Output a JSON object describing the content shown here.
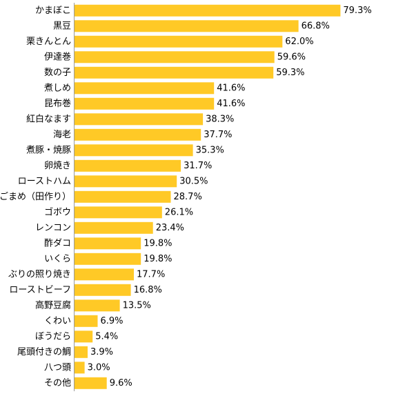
{
  "chart_data": {
    "type": "bar",
    "orientation": "horizontal",
    "title": "",
    "xlabel": "",
    "ylabel": "",
    "unit": "%",
    "xlim": [
      0,
      100
    ],
    "grid": false,
    "legend": "none",
    "bar_color": "#FFC926",
    "categories": [
      "かまぼこ",
      "黒豆",
      "栗きんとん",
      "伊達巻",
      "数の子",
      "煮しめ",
      "昆布巻",
      "紅白なます",
      "海老",
      "煮豚・焼豚",
      "卵焼き",
      "ローストハム",
      "ごまめ（田作り）",
      "ゴボウ",
      "レンコン",
      "酢ダコ",
      "いくら",
      "ぶりの照り焼き",
      "ローストビーフ",
      "高野豆腐",
      "くわい",
      "ぼうだら",
      "尾頭付きの鯛",
      "八つ頭",
      "その他"
    ],
    "values": [
      79.3,
      66.8,
      62.0,
      59.6,
      59.3,
      41.6,
      41.6,
      38.3,
      37.7,
      35.3,
      31.7,
      30.5,
      28.7,
      26.1,
      23.4,
      19.8,
      19.8,
      17.7,
      16.8,
      13.5,
      6.9,
      5.4,
      3.9,
      3.0,
      9.6
    ],
    "value_labels": [
      "79.3%",
      "66.8%",
      "62.0%",
      "59.6%",
      "59.3%",
      "41.6%",
      "41.6%",
      "38.3%",
      "37.7%",
      "35.3%",
      "31.7%",
      "30.5%",
      "28.7%",
      "26.1%",
      "23.4%",
      "19.8%",
      "19.8%",
      "17.7%",
      "16.8%",
      "13.5%",
      "6.9%",
      "5.4%",
      "3.9%",
      "3.0%",
      "9.6%"
    ]
  }
}
